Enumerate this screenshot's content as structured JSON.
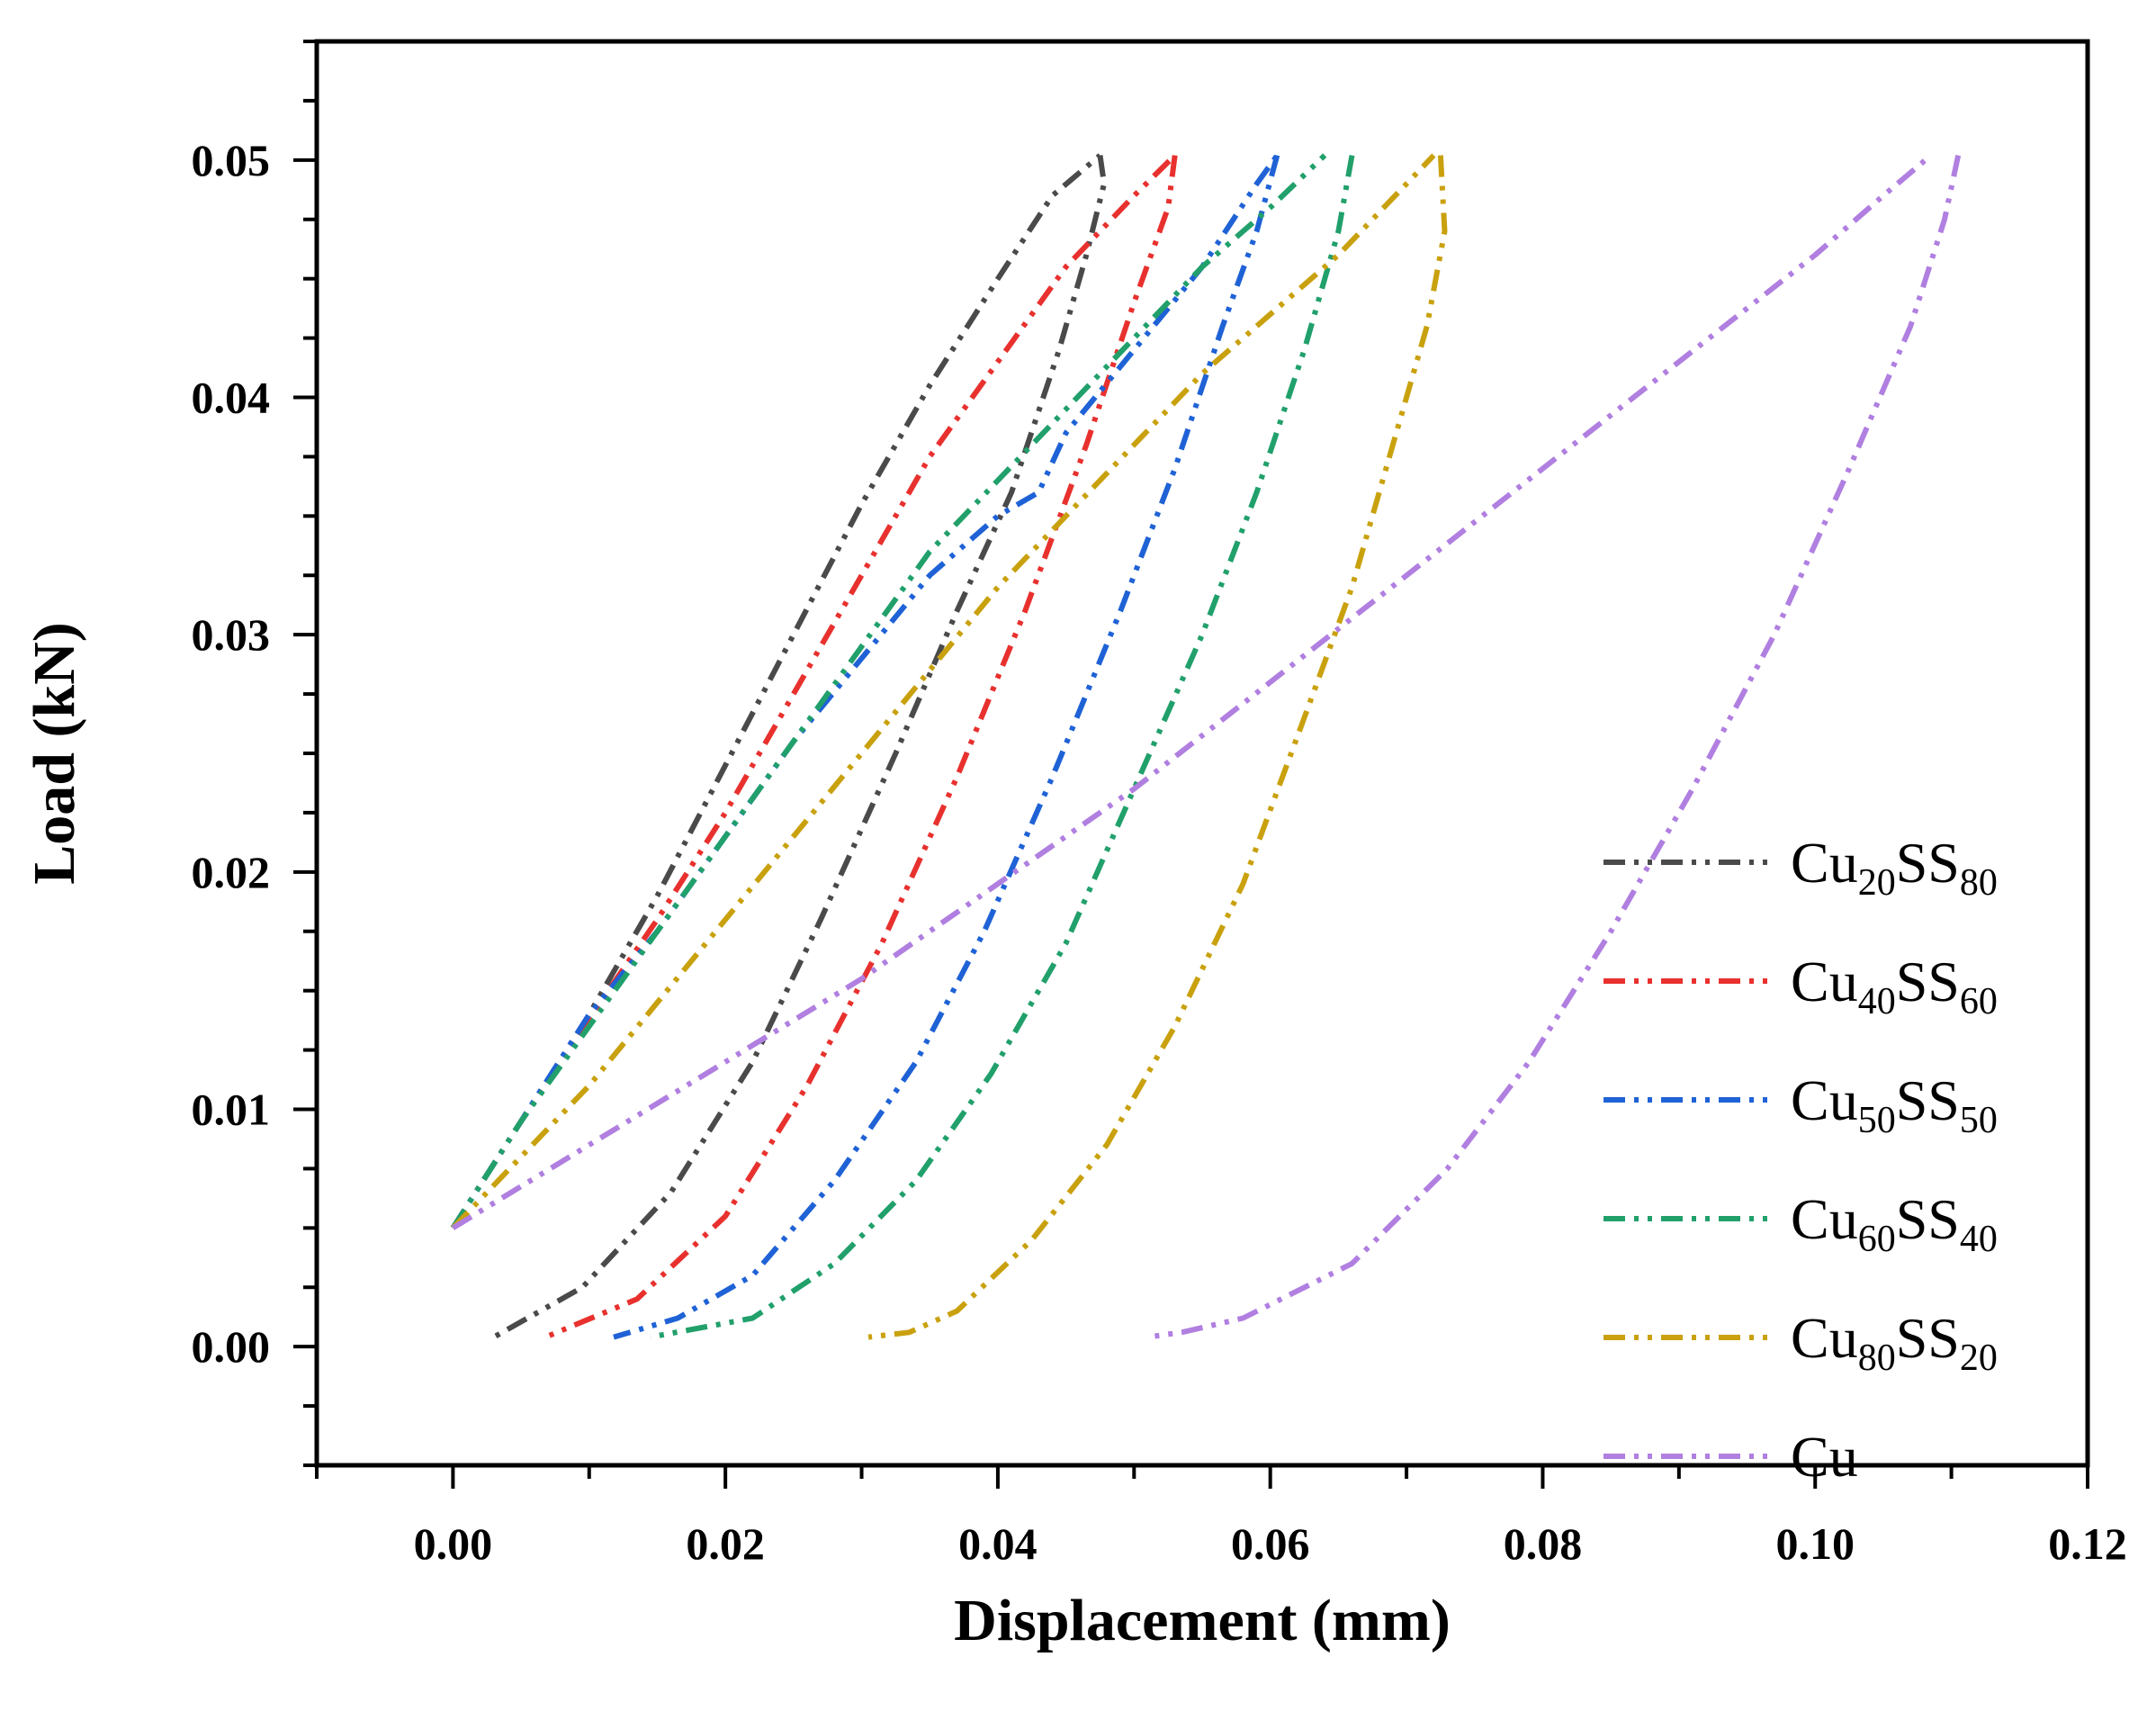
{
  "chart_data": {
    "type": "line",
    "title": "",
    "xlabel": "Displacement (mm)",
    "ylabel": "Load (kN)",
    "xlim": [
      -0.01,
      0.12
    ],
    "ylim": [
      -0.005,
      0.055
    ],
    "xticks": [
      "0.00",
      "0.02",
      "0.04",
      "0.06",
      "0.08",
      "0.10",
      "0.12"
    ],
    "yticks": [
      "0.00",
      "0.01",
      "0.02",
      "0.03",
      "0.04",
      "0.05"
    ],
    "grid": false,
    "legend_position": "bottom-right",
    "series": [
      {
        "name": "Cu20SS80",
        "label_main": "Cu",
        "label_sub1": "20",
        "label_mid": "SS",
        "label_sub2": "80",
        "color": "#4a4a4a",
        "loading": [
          [
            0.0,
            0.005
          ],
          [
            0.005,
            0.0095
          ],
          [
            0.009,
            0.013
          ],
          [
            0.015,
            0.019
          ],
          [
            0.02,
            0.0245
          ],
          [
            0.025,
            0.03
          ],
          [
            0.03,
            0.0355
          ],
          [
            0.035,
            0.0405
          ],
          [
            0.04,
            0.045
          ],
          [
            0.044,
            0.0485
          ],
          [
            0.0475,
            0.0502
          ]
        ],
        "unloading": [
          [
            0.0475,
            0.0502
          ],
          [
            0.0478,
            0.049
          ],
          [
            0.0465,
            0.046
          ],
          [
            0.0445,
            0.042
          ],
          [
            0.041,
            0.036
          ],
          [
            0.037,
            0.031
          ],
          [
            0.0325,
            0.025
          ],
          [
            0.027,
            0.018
          ],
          [
            0.022,
            0.012
          ],
          [
            0.016,
            0.0065
          ],
          [
            0.0095,
            0.0025
          ],
          [
            0.003,
            0.0004
          ]
        ]
      },
      {
        "name": "Cu40SS60",
        "label_main": "Cu",
        "label_sub1": "40",
        "label_mid": "SS",
        "label_sub2": "60",
        "color": "#e8312e",
        "loading": [
          [
            0.0,
            0.005
          ],
          [
            0.005,
            0.0095
          ],
          [
            0.009,
            0.013
          ],
          [
            0.015,
            0.018
          ],
          [
            0.02,
            0.0225
          ],
          [
            0.025,
            0.0275
          ],
          [
            0.03,
            0.0325
          ],
          [
            0.035,
            0.0375
          ],
          [
            0.04,
            0.0415
          ],
          [
            0.045,
            0.0455
          ],
          [
            0.05,
            0.0485
          ],
          [
            0.053,
            0.0502
          ]
        ],
        "unloading": [
          [
            0.053,
            0.0502
          ],
          [
            0.0525,
            0.048
          ],
          [
            0.05,
            0.044
          ],
          [
            0.0465,
            0.038
          ],
          [
            0.042,
            0.031
          ],
          [
            0.037,
            0.024
          ],
          [
            0.0315,
            0.017
          ],
          [
            0.026,
            0.011
          ],
          [
            0.02,
            0.0055
          ],
          [
            0.0135,
            0.002
          ],
          [
            0.0068,
            0.0004
          ]
        ]
      },
      {
        "name": "Cu50SS50",
        "label_main": "Cu",
        "label_sub1": "50",
        "label_mid": "SS",
        "label_sub2": "50",
        "color": "#1f62d6",
        "loading": [
          [
            0.0,
            0.005
          ],
          [
            0.005,
            0.0095
          ],
          [
            0.01,
            0.014
          ],
          [
            0.015,
            0.0175
          ],
          [
            0.02,
            0.0215
          ],
          [
            0.025,
            0.0255
          ],
          [
            0.03,
            0.029
          ],
          [
            0.035,
            0.0325
          ],
          [
            0.04,
            0.035
          ],
          [
            0.043,
            0.036
          ],
          [
            0.045,
            0.0385
          ],
          [
            0.05,
            0.042
          ],
          [
            0.055,
            0.0455
          ],
          [
            0.059,
            0.049
          ],
          [
            0.0605,
            0.0502
          ]
        ],
        "unloading": [
          [
            0.0605,
            0.0502
          ],
          [
            0.059,
            0.047
          ],
          [
            0.0565,
            0.043
          ],
          [
            0.053,
            0.037
          ],
          [
            0.049,
            0.031
          ],
          [
            0.044,
            0.024
          ],
          [
            0.039,
            0.0175
          ],
          [
            0.034,
            0.012
          ],
          [
            0.028,
            0.007
          ],
          [
            0.022,
            0.003
          ],
          [
            0.0165,
            0.0012
          ],
          [
            0.0118,
            0.0004
          ]
        ]
      },
      {
        "name": "Cu60SS40",
        "label_main": "Cu",
        "label_sub1": "60",
        "label_mid": "SS",
        "label_sub2": "40",
        "color": "#21a06b",
        "loading": [
          [
            0.0,
            0.005
          ],
          [
            0.005,
            0.0095
          ],
          [
            0.01,
            0.0135
          ],
          [
            0.015,
            0.0175
          ],
          [
            0.02,
            0.0215
          ],
          [
            0.025,
            0.0255
          ],
          [
            0.03,
            0.0295
          ],
          [
            0.035,
            0.0335
          ],
          [
            0.04,
            0.0365
          ],
          [
            0.045,
            0.0395
          ],
          [
            0.05,
            0.0425
          ],
          [
            0.055,
            0.0455
          ],
          [
            0.06,
            0.048
          ],
          [
            0.064,
            0.0502
          ]
        ],
        "unloading": [
          [
            0.066,
            0.0502
          ],
          [
            0.065,
            0.047
          ],
          [
            0.0625,
            0.042
          ],
          [
            0.059,
            0.036
          ],
          [
            0.055,
            0.03
          ],
          [
            0.05,
            0.0235
          ],
          [
            0.045,
            0.017
          ],
          [
            0.0395,
            0.0115
          ],
          [
            0.034,
            0.007
          ],
          [
            0.028,
            0.0035
          ],
          [
            0.022,
            0.0012
          ],
          [
            0.0145,
            0.0004
          ]
        ]
      },
      {
        "name": "Cu80SS20",
        "label_main": "Cu",
        "label_sub1": "80",
        "label_mid": "SS",
        "label_sub2": "20",
        "color": "#c9a10e",
        "loading": [
          [
            0.0,
            0.005
          ],
          [
            0.005,
            0.008
          ],
          [
            0.01,
            0.011
          ],
          [
            0.015,
            0.0145
          ],
          [
            0.02,
            0.018
          ],
          [
            0.025,
            0.0215
          ],
          [
            0.03,
            0.025
          ],
          [
            0.035,
            0.0285
          ],
          [
            0.04,
            0.032
          ],
          [
            0.045,
            0.035
          ],
          [
            0.05,
            0.038
          ],
          [
            0.055,
            0.041
          ],
          [
            0.06,
            0.0435
          ],
          [
            0.065,
            0.046
          ],
          [
            0.07,
            0.049
          ],
          [
            0.072,
            0.0502
          ]
        ],
        "unloading": [
          [
            0.0725,
            0.0502
          ],
          [
            0.0728,
            0.047
          ],
          [
            0.0715,
            0.043
          ],
          [
            0.069,
            0.038
          ],
          [
            0.066,
            0.032
          ],
          [
            0.0625,
            0.0265
          ],
          [
            0.058,
            0.0195
          ],
          [
            0.053,
            0.0135
          ],
          [
            0.048,
            0.0085
          ],
          [
            0.0425,
            0.0045
          ],
          [
            0.037,
            0.0015
          ],
          [
            0.0335,
            0.0006
          ],
          [
            0.0305,
            0.0004
          ]
        ]
      },
      {
        "name": "Cu",
        "label_main": "Cu",
        "label_sub1": "",
        "label_mid": "",
        "label_sub2": "",
        "color": "#b07fe0",
        "loading": [
          [
            0.0,
            0.005
          ],
          [
            0.01,
            0.0085
          ],
          [
            0.02,
            0.012
          ],
          [
            0.03,
            0.0155
          ],
          [
            0.04,
            0.0195
          ],
          [
            0.05,
            0.0235
          ],
          [
            0.06,
            0.028
          ],
          [
            0.07,
            0.0325
          ],
          [
            0.08,
            0.037
          ],
          [
            0.09,
            0.0415
          ],
          [
            0.1,
            0.046
          ],
          [
            0.105,
            0.0485
          ],
          [
            0.1085,
            0.0502
          ]
        ],
        "unloading": [
          [
            0.1105,
            0.0502
          ],
          [
            0.1095,
            0.0475
          ],
          [
            0.107,
            0.043
          ],
          [
            0.1025,
            0.037
          ],
          [
            0.097,
            0.03
          ],
          [
            0.091,
            0.0235
          ],
          [
            0.085,
            0.0175
          ],
          [
            0.079,
            0.012
          ],
          [
            0.073,
            0.0075
          ],
          [
            0.066,
            0.0035
          ],
          [
            0.058,
            0.0012
          ],
          [
            0.0535,
            0.0006
          ],
          [
            0.051,
            0.0004
          ]
        ]
      }
    ]
  }
}
